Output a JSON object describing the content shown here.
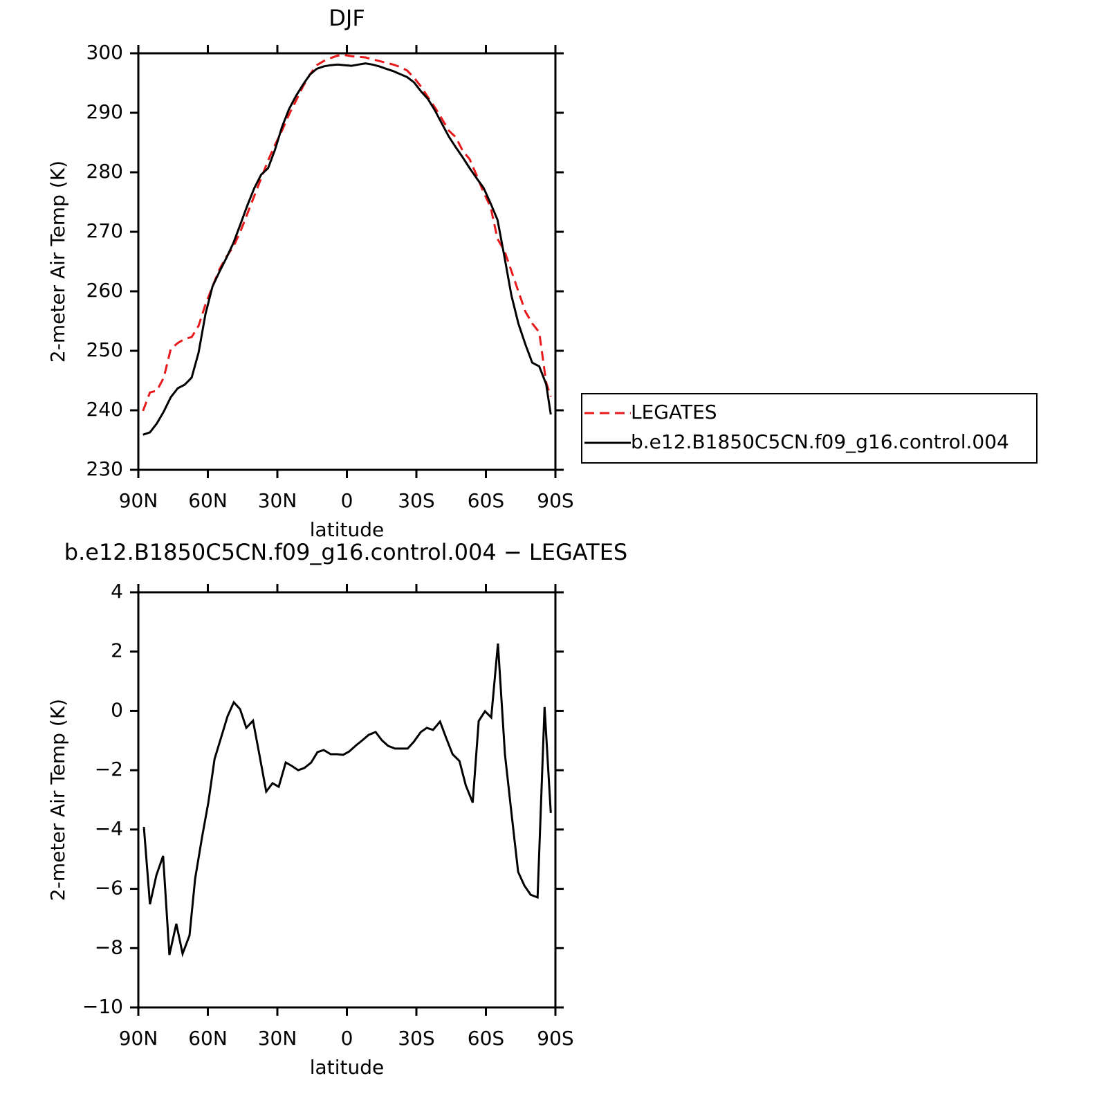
{
  "chart_data": [
    {
      "type": "line",
      "title": "DJF",
      "xlabel": "latitude",
      "ylabel": "2-meter Air Temp (K)",
      "x": [
        88,
        85,
        82,
        79,
        76,
        73,
        70,
        67,
        64,
        61,
        58,
        55,
        52,
        49,
        46,
        43,
        40,
        37,
        34,
        31,
        28,
        25,
        22,
        19,
        16,
        13,
        10,
        7,
        4,
        1,
        -2,
        -5,
        -8,
        -11,
        -14,
        -17,
        -20,
        -23,
        -26,
        -29,
        -32,
        -35,
        -38,
        -41,
        -44,
        -47,
        -50,
        -53,
        -56,
        -59,
        -62,
        -65,
        -68,
        -71,
        -74,
        -77,
        -80,
        -83,
        -86,
        -88
      ],
      "series": [
        {
          "name": "LEGATES",
          "color": "#e8191b",
          "dashed": true,
          "values": [
            239.9,
            243.0,
            243.3,
            245.5,
            250.3,
            251.3,
            252.0,
            252.3,
            254.2,
            257.8,
            260.8,
            263.7,
            265.8,
            267.5,
            270,
            273,
            276,
            279,
            282,
            284.6,
            287,
            289.7,
            292,
            294.4,
            296.4,
            298,
            298.7,
            299.2,
            299.6,
            299.7,
            299.5,
            299.4,
            299.3,
            299.0,
            298.7,
            298.4,
            298.1,
            297.7,
            297.1,
            295.9,
            294.4,
            292.6,
            290.9,
            289.0,
            287.0,
            285.9,
            283.6,
            282.2,
            279.5,
            276.6,
            274.2,
            268.8,
            266.8,
            263.4,
            260,
            256.6,
            254.6,
            253.1,
            244.7,
            242.3
          ]
        },
        {
          "name": "b.e12.B1850C5CN.f09_g16.control.004",
          "color": "#000000",
          "dashed": false,
          "values": [
            235.9,
            236.3,
            237.8,
            239.8,
            242.2,
            243.7,
            244.3,
            245.5,
            249.7,
            256.2,
            260.8,
            263.3,
            265.6,
            268.1,
            271.2,
            274.4,
            277.3,
            279.6,
            280.7,
            283.8,
            287.6,
            290.6,
            292.8,
            294.7,
            296.4,
            297.4,
            297.8,
            298.0,
            298.1,
            298.0,
            297.9,
            298.1,
            298.3,
            298.1,
            297.8,
            297.4,
            297.0,
            296.5,
            296.0,
            295.1,
            293.6,
            292.3,
            290.4,
            288.2,
            286.0,
            284.2,
            282.5,
            280.7,
            279.0,
            277.4,
            274.8,
            272,
            265.8,
            259.3,
            254.6,
            251.1,
            248.0,
            247.4,
            244.4,
            239.3
          ]
        }
      ],
      "xlim": [
        90,
        -90
      ],
      "xticks": [
        {
          "value": 90,
          "label": "90N"
        },
        {
          "value": 60,
          "label": "60N"
        },
        {
          "value": 30,
          "label": "30N"
        },
        0,
        {
          "value": -30,
          "label": "30S"
        },
        {
          "value": -60,
          "label": "60S"
        },
        {
          "value": -90,
          "label": "90S"
        }
      ],
      "ylim": [
        230,
        300
      ],
      "yticks": [
        230,
        240,
        250,
        260,
        270,
        280,
        290,
        300
      ],
      "legend": "outside-right"
    },
    {
      "type": "line",
      "title": "b.e12.B1850C5CN.f09_g16.control.004 − LEGATES",
      "xlabel": "latitude",
      "ylabel": "2-meter Air Temp (K)",
      "x": [
        87.6,
        85,
        82.2,
        79.3,
        76.6,
        73.6,
        70.9,
        67.9,
        65.5,
        62.5,
        59.8,
        57.1,
        54.2,
        51.5,
        48.8,
        46.1,
        43.4,
        40.5,
        37.8,
        34.8,
        32.1,
        29.4,
        26.4,
        23.7,
        21,
        18.4,
        15.4,
        12.7,
        10,
        7,
        4.3,
        1.6,
        -1,
        -4,
        -6.7,
        -9.4,
        -12.4,
        -15.1,
        -17.8,
        -20.8,
        -23.5,
        -26.2,
        -28.9,
        -31.9,
        -34.5,
        -37.2,
        -40.2,
        -42.9,
        -45.6,
        -48.6,
        -51.3,
        -54.3,
        -56.9,
        -59.6,
        -62.3,
        -65.2,
        -68.2,
        -71.2,
        -73.9,
        -76.6,
        -79.3,
        -82.3,
        -85.3,
        -88
      ],
      "values": [
        -3.91,
        -6.52,
        -5.54,
        -4.89,
        -8.23,
        -7.18,
        -8.19,
        -7.57,
        -5.66,
        -4.26,
        -3.09,
        -1.62,
        -0.88,
        -0.18,
        0.29,
        0.06,
        -0.57,
        -0.33,
        -1.46,
        -2.72,
        -2.44,
        -2.56,
        -1.74,
        -1.86,
        -2.0,
        -1.93,
        -1.74,
        -1.39,
        -1.32,
        -1.46,
        -1.46,
        -1.48,
        -1.37,
        -1.16,
        -0.99,
        -0.81,
        -0.71,
        -0.99,
        -1.18,
        -1.27,
        -1.27,
        -1.27,
        -1.04,
        -0.71,
        -0.57,
        -0.64,
        -0.36,
        -0.92,
        -1.46,
        -1.69,
        -2.51,
        -3.09,
        -0.34,
        -0.01,
        -0.22,
        2.27,
        -1.46,
        -3.56,
        -5.43,
        -5.89,
        -6.2,
        -6.29,
        0.13,
        -3.44
      ],
      "color": "#000000",
      "xlim": [
        90,
        -90
      ],
      "xticks": [
        {
          "value": 90,
          "label": "90N"
        },
        {
          "value": 60,
          "label": "60N"
        },
        {
          "value": 30,
          "label": "30N"
        },
        0,
        {
          "value": -30,
          "label": "30S"
        },
        {
          "value": -60,
          "label": "60S"
        },
        {
          "value": -90,
          "label": "90S"
        }
      ],
      "ylim": [
        -10,
        4
      ],
      "yticks": [
        {
          "value": -10,
          "label": "−10"
        },
        {
          "value": -8,
          "label": "−8"
        },
        {
          "value": -6,
          "label": "−6"
        },
        {
          "value": -4,
          "label": "−4"
        },
        {
          "value": -2,
          "label": "−2"
        },
        0,
        2,
        4
      ]
    }
  ]
}
